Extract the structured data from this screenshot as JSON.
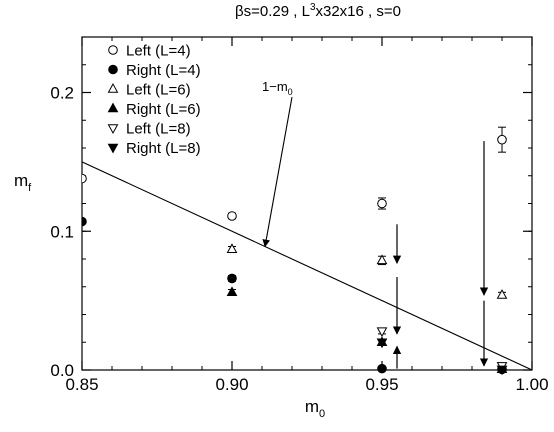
{
  "chart_data": {
    "type": "scatter",
    "title_parts": {
      "beta": "βs=0.29 , L",
      "sup": "3",
      "rest": "x32x16 , s=0"
    },
    "xlabel": {
      "main": "m",
      "sub": "0"
    },
    "ylabel": {
      "main": "m",
      "sub": "f"
    },
    "xlim": [
      0.85,
      1.0
    ],
    "ylim": [
      0.0,
      0.24
    ],
    "x_ticks": [
      {
        "v": 0.85,
        "label": "0.85"
      },
      {
        "v": 0.9,
        "label": "0.90"
      },
      {
        "v": 0.95,
        "label": "0.95"
      },
      {
        "v": 1.0,
        "label": "1.00"
      }
    ],
    "y_ticks": [
      {
        "v": 0.0,
        "label": "0.0"
      },
      {
        "v": 0.1,
        "label": "0.1"
      },
      {
        "v": 0.2,
        "label": "0.2"
      }
    ],
    "x_minor_step": 0.01,
    "y_minor_step": 0.02,
    "legend_position": "top-left",
    "series": [
      {
        "name": "Left (L=4)",
        "marker": "circle-open",
        "points": [
          [
            0.85,
            0.138,
            0.001
          ],
          [
            0.9,
            0.111,
            0.002
          ],
          [
            0.95,
            0.12,
            0.004
          ],
          [
            0.99,
            0.166,
            0.009
          ]
        ]
      },
      {
        "name": "Right (L=4)",
        "marker": "circle-filled",
        "points": [
          [
            0.85,
            0.107,
            0.001
          ],
          [
            0.9,
            0.066,
            0.002
          ],
          [
            0.95,
            0.001,
            0.001
          ],
          [
            0.99,
            0.0005,
            0.0005
          ]
        ]
      },
      {
        "name": "Left (L=6)",
        "marker": "triangle-up-open",
        "points": [
          [
            0.9,
            0.087,
            0.002
          ],
          [
            0.95,
            0.079,
            0.003
          ],
          [
            0.99,
            0.054,
            0.002
          ]
        ]
      },
      {
        "name": "Right (L=6)",
        "marker": "triangle-up-filled",
        "points": [
          [
            0.9,
            0.056,
            0.002
          ],
          [
            0.95,
            0.02,
            0.002
          ],
          [
            0.99,
            0.0005,
            0.0005
          ]
        ]
      },
      {
        "name": "Left (L=8)",
        "marker": "triangle-down-open",
        "points": [
          [
            0.95,
            0.028,
            0.002
          ],
          [
            0.99,
            0.003,
            0.001
          ]
        ]
      },
      {
        "name": "Right (L=8)",
        "marker": "triangle-down-filled",
        "points": [
          [
            0.95,
            0.02,
            0.002
          ],
          [
            0.99,
            0.0005,
            0.0005
          ]
        ]
      }
    ],
    "reference_line": {
      "label_main": "1−m",
      "label_sub": "0",
      "points": [
        [
          0.85,
          0.15
        ],
        [
          1.0,
          0.0
        ]
      ],
      "label_at": [
        0.91,
        0.201
      ],
      "arrow_to": [
        0.911,
        0.089
      ]
    },
    "arrows": [
      {
        "from": [
          0.955,
          0.105
        ],
        "to": [
          0.955,
          0.077
        ]
      },
      {
        "from": [
          0.955,
          0.067
        ],
        "to": [
          0.955,
          0.026
        ]
      },
      {
        "from": [
          0.955,
          0.001
        ],
        "to": [
          0.955,
          0.017
        ]
      },
      {
        "from": [
          0.984,
          0.165
        ],
        "to": [
          0.984,
          0.054
        ]
      },
      {
        "from": [
          0.984,
          0.05
        ],
        "to": [
          0.984,
          0.003
        ]
      }
    ]
  }
}
